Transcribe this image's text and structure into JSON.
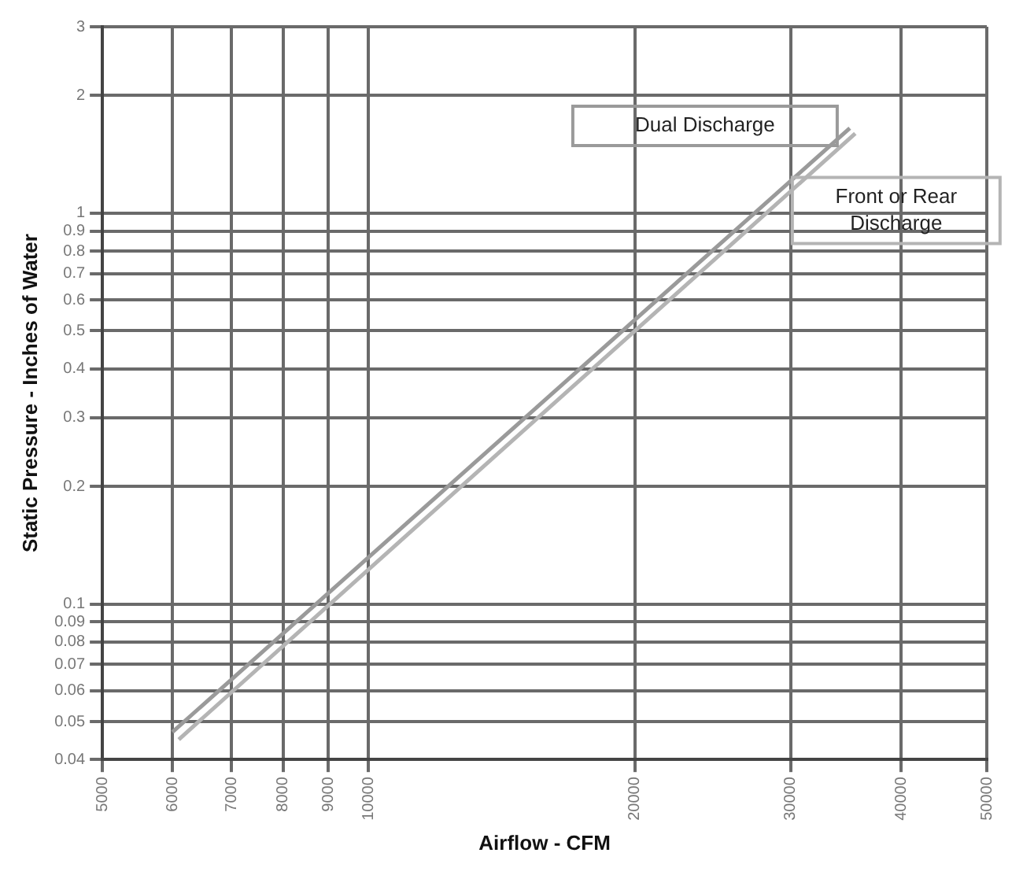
{
  "chart_data": {
    "type": "line",
    "xlabel": "Airflow - CFM",
    "ylabel": "Static Pressure - Inches of Water",
    "log": "xy",
    "grid": true,
    "legend": false,
    "marker": "none",
    "line_style": "solid",
    "xlim": [
      5000,
      50000
    ],
    "xticks": [
      5000,
      6000,
      7000,
      8000,
      9000,
      10000,
      20000,
      30000,
      40000,
      50000
    ],
    "ylim": [
      0.04,
      3
    ],
    "yticks": [
      0.04,
      0.05,
      0.06,
      0.07,
      0.08,
      0.09,
      0.1,
      0.2,
      0.3,
      0.4,
      0.5,
      0.6,
      0.7,
      0.8,
      0.9,
      1,
      2,
      3
    ],
    "series": [
      {
        "name": "Dual Discharge",
        "color": "#9a9a9a",
        "x": [
          6000,
          35000
        ],
        "values": [
          0.047,
          1.65
        ]
      },
      {
        "name": "Front or Rear Discharge",
        "color": "#b4b4b4",
        "x": [
          6100,
          35500
        ],
        "values": [
          0.045,
          1.6
        ]
      }
    ]
  }
}
